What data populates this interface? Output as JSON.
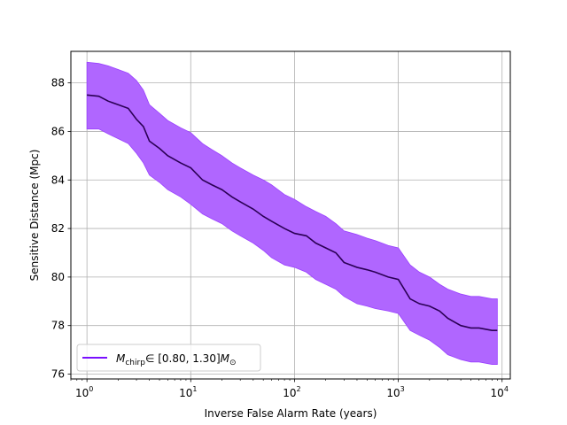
{
  "chart_data": {
    "type": "line",
    "xlabel": "Inverse False Alarm Rate (years)",
    "ylabel": "Sensitive Distance (Mpc)",
    "xscale": "log",
    "xlim": [
      0.7,
      12000
    ],
    "ylim": [
      75.8,
      89.3
    ],
    "x_ticks": [
      1,
      10,
      100,
      1000,
      10000
    ],
    "x_tick_labels": [
      "10",
      "10",
      "10",
      "10",
      "10"
    ],
    "x_tick_exponents": [
      "0",
      "1",
      "2",
      "3",
      "4"
    ],
    "y_ticks": [
      76,
      78,
      80,
      82,
      84,
      86,
      88
    ],
    "y_tick_labels": [
      "76",
      "78",
      "80",
      "82",
      "84",
      "86",
      "88"
    ],
    "grid": true,
    "legend_position": "lower-left",
    "colors": {
      "line": "#2b0055",
      "band": "#b066ff",
      "band_edge": "#9a40ff",
      "legend_line": "#7a10ff",
      "grid": "#b0b0b0"
    },
    "series": [
      {
        "name": "M_chirp ∈ [0.80, 1.30] M_⊙",
        "legend_math": {
          "base": "M",
          "sub": "chirp",
          "interval": "∈ [0.80, 1.30]",
          "unit": "M",
          "unit_sub": "⊙"
        },
        "x": [
          1,
          1.3,
          1.6,
          2,
          2.5,
          3,
          3.5,
          4,
          5,
          6,
          8,
          10,
          13,
          16,
          20,
          25,
          30,
          40,
          50,
          60,
          80,
          100,
          130,
          160,
          200,
          250,
          300,
          400,
          500,
          600,
          800,
          1000,
          1300,
          1600,
          2000,
          2500,
          3000,
          4000,
          5000,
          6000,
          8000,
          9000
        ],
        "y": [
          87.5,
          87.45,
          87.25,
          87.1,
          86.95,
          86.5,
          86.2,
          85.6,
          85.3,
          85.0,
          84.7,
          84.5,
          84.0,
          83.8,
          83.6,
          83.3,
          83.1,
          82.8,
          82.5,
          82.3,
          82.0,
          81.8,
          81.7,
          81.4,
          81.2,
          81.0,
          80.6,
          80.4,
          80.3,
          80.2,
          80.0,
          79.9,
          79.1,
          78.9,
          78.8,
          78.6,
          78.3,
          78.0,
          77.9,
          77.9,
          77.8,
          77.8
        ],
        "upper": [
          88.85,
          88.8,
          88.7,
          88.55,
          88.4,
          88.1,
          87.7,
          87.1,
          86.75,
          86.45,
          86.15,
          85.95,
          85.5,
          85.25,
          85.0,
          84.7,
          84.5,
          84.2,
          84.0,
          83.8,
          83.4,
          83.2,
          82.9,
          82.7,
          82.5,
          82.2,
          81.9,
          81.75,
          81.6,
          81.5,
          81.3,
          81.2,
          80.5,
          80.2,
          80.0,
          79.7,
          79.5,
          79.3,
          79.2,
          79.2,
          79.1,
          79.1
        ],
        "lower": [
          86.1,
          86.1,
          85.9,
          85.7,
          85.5,
          85.1,
          84.7,
          84.2,
          83.9,
          83.6,
          83.3,
          83.0,
          82.6,
          82.4,
          82.2,
          81.9,
          81.7,
          81.4,
          81.1,
          80.8,
          80.5,
          80.4,
          80.2,
          79.9,
          79.7,
          79.5,
          79.2,
          78.9,
          78.8,
          78.7,
          78.6,
          78.5,
          77.8,
          77.6,
          77.4,
          77.1,
          76.8,
          76.6,
          76.5,
          76.5,
          76.4,
          76.4
        ]
      }
    ]
  }
}
